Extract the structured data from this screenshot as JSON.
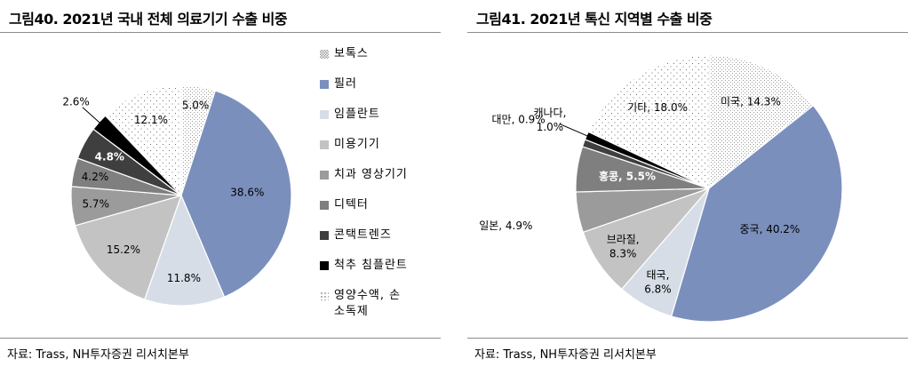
{
  "left": {
    "title": "그림40. 2021년 국내 전체 의료기기 수출 비중",
    "source": "자료: Trass, NH투자증권 리서치본부"
  },
  "right": {
    "title": "그림41. 2021년 톡신 지역별 수출 비중",
    "source": "자료: Trass, NH투자증권 리서치본부"
  },
  "colors": {
    "blue": "#7b8fbd",
    "light_blue": "#d6dde7",
    "light_gray": "#c3c3c3",
    "mid_gray": "#9b9b9b",
    "dark_gray": "#7f7f7f",
    "darker_gray": "#3f3f3f",
    "black": "#000000",
    "dot_ink": "#9a9a9a"
  },
  "chart_data": [
    {
      "type": "pie",
      "title": "",
      "legend": "right",
      "labels": [
        "보톡스",
        "필러",
        "임플란트",
        "미용기기",
        "치과 영상기기",
        "디텍터",
        "콘택트렌즈",
        "척추 침플란트",
        "영양수액, 손소독제"
      ],
      "legend_labels": [
        "보톡스",
        "필러",
        "임플란트",
        "미용기기",
        "치과 영상기기",
        "디텍터",
        "콘택트렌즈",
        "척추 침플란트",
        "영양수액, 손\n소독제"
      ],
      "values": [
        5.0,
        38.6,
        11.8,
        15.2,
        5.7,
        4.2,
        4.8,
        2.6,
        12.1
      ],
      "value_labels": [
        "5.0%",
        "38.6%",
        "11.8%",
        "15.2%",
        "5.7%",
        "4.2%",
        "4.8%",
        "2.6%",
        "12.1%"
      ]
    },
    {
      "type": "pie",
      "title": "",
      "legend": "none",
      "labels": [
        "미국",
        "중국",
        "태국",
        "브라질",
        "일본",
        "홍콩",
        "대만",
        "캐나다",
        "기타"
      ],
      "values": [
        14.3,
        40.2,
        6.8,
        8.3,
        4.9,
        5.5,
        0.9,
        1.0,
        18.0
      ],
      "value_labels": [
        "미국, 14.3%",
        "중국, 40.2%",
        "태국,\n6.8%",
        "브라질,\n8.3%",
        "일본, 4.9%",
        "홍콩, 5.5%",
        "대만, 0.9%",
        "캐나다,\n1.0%",
        "기타, 18.0%"
      ]
    }
  ]
}
